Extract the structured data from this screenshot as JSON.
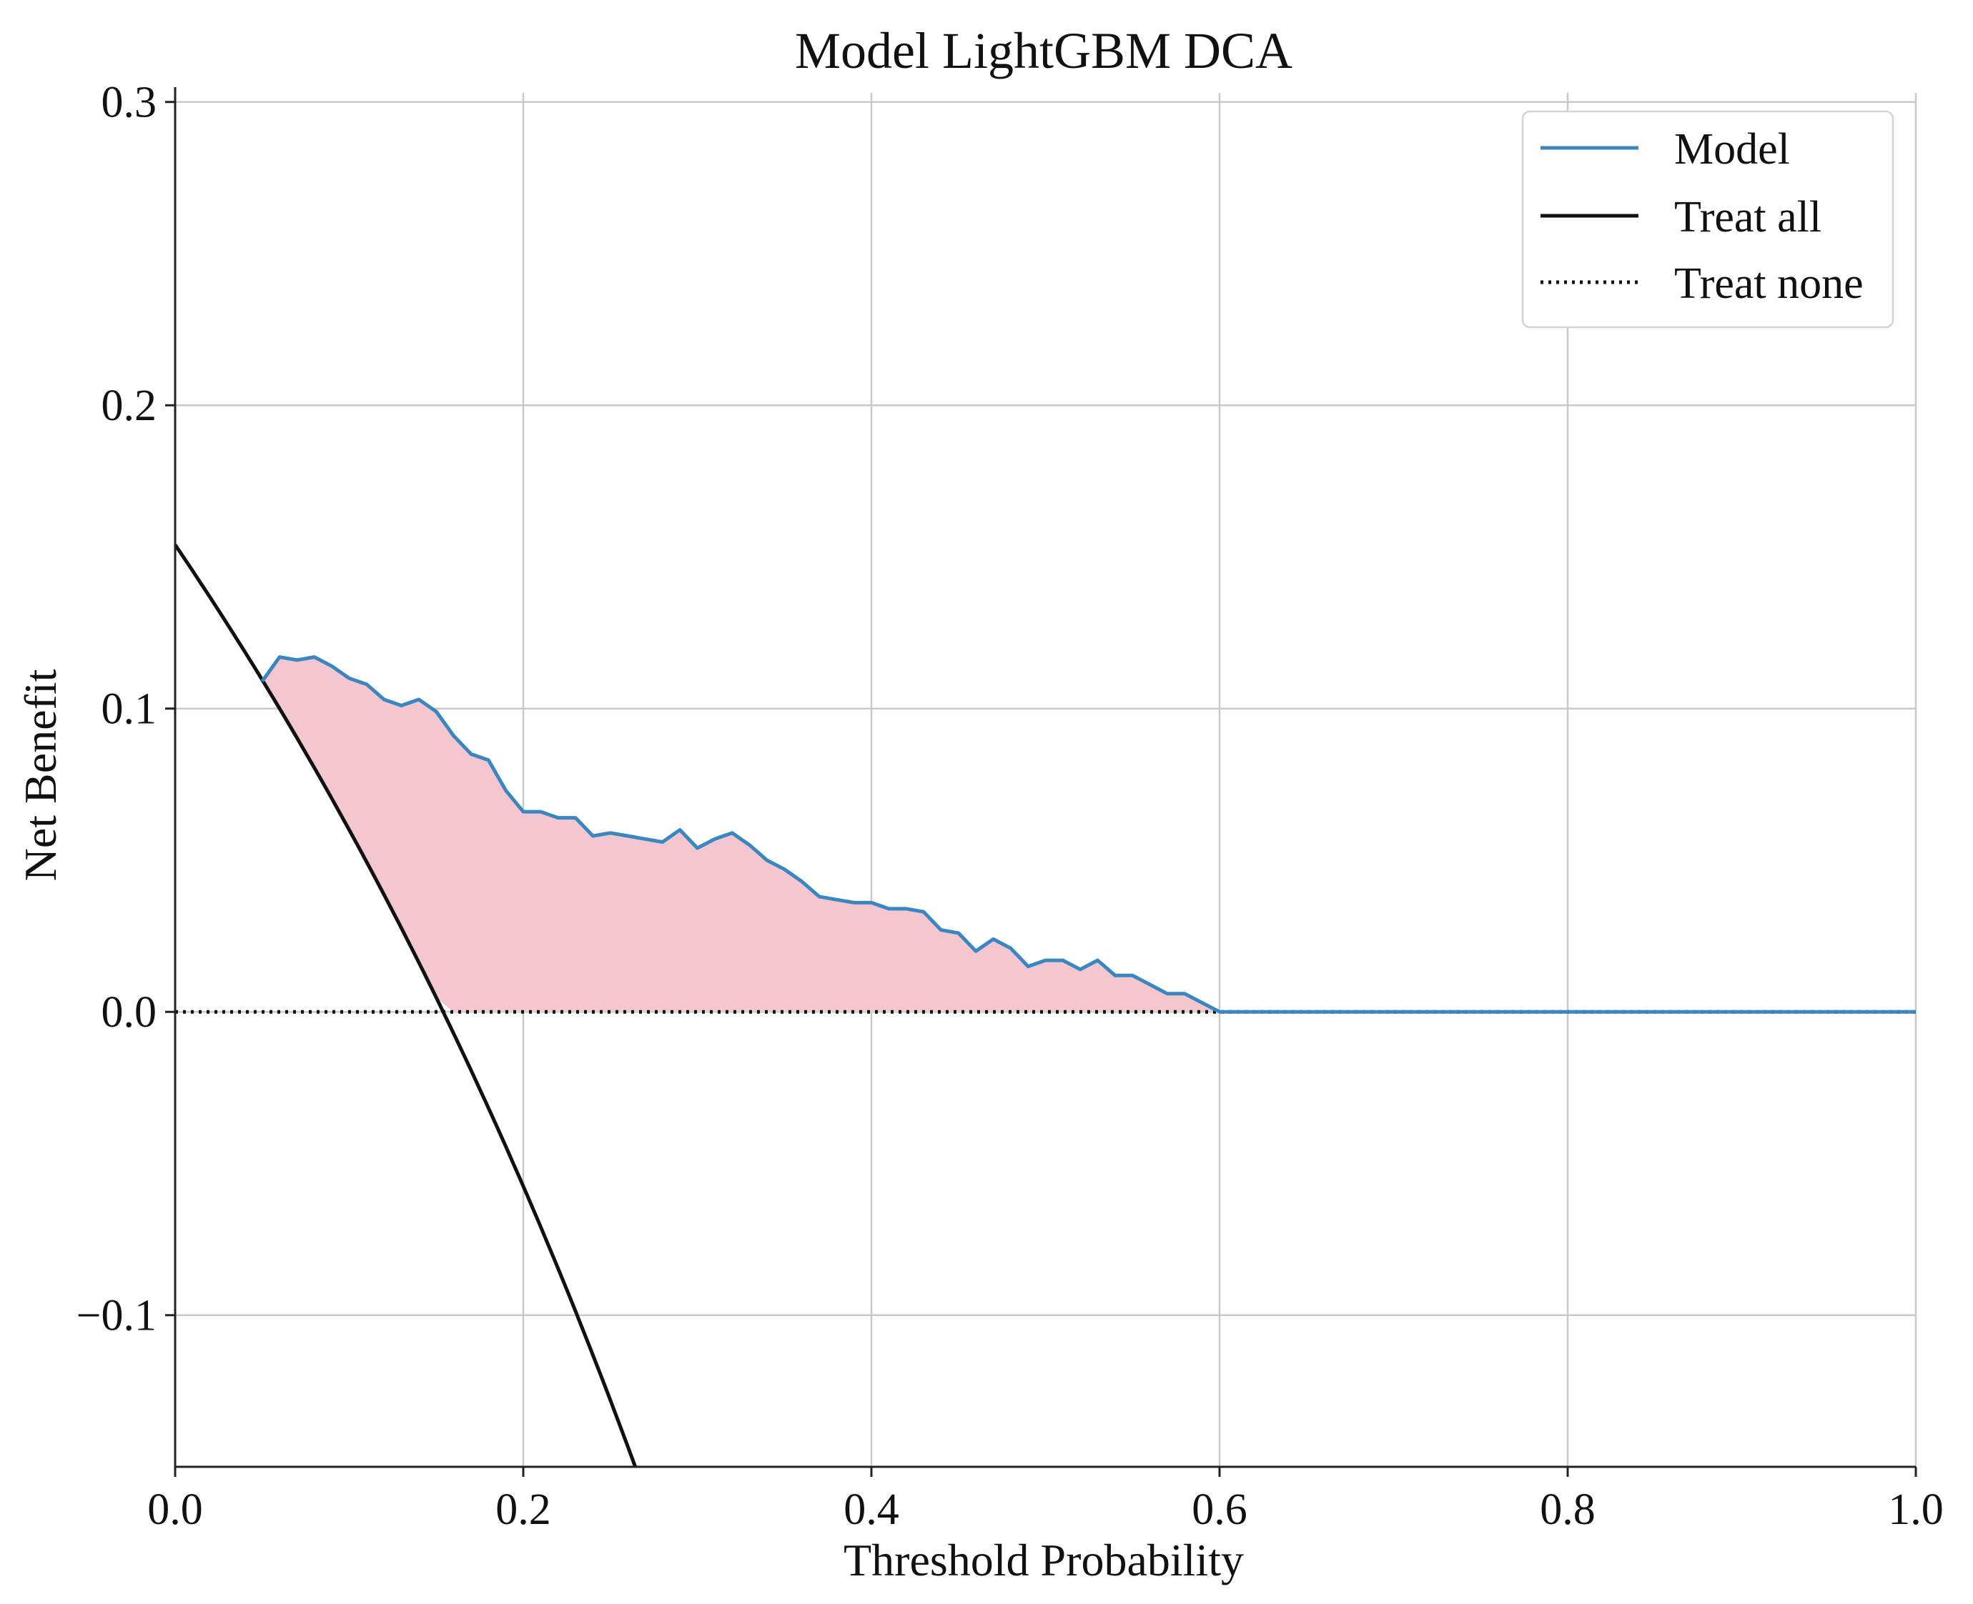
{
  "chart_data": {
    "type": "line",
    "title": "Model LightGBM DCA",
    "xlabel": "Threshold Probability",
    "ylabel": "Net Benefit",
    "xlim": [
      0.0,
      1.0
    ],
    "ylim": [
      -0.15,
      0.303
    ],
    "grid": true,
    "legend_position": "top-right",
    "x_ticks": [
      0.0,
      0.2,
      0.4,
      0.6,
      0.8,
      1.0
    ],
    "x_tick_labels": [
      "0.0",
      "0.2",
      "0.4",
      "0.6",
      "0.8",
      "1.0"
    ],
    "y_ticks": [
      -0.1,
      0.0,
      0.1,
      0.2,
      0.3
    ],
    "y_tick_labels": [
      "−0.1",
      "0.0",
      "0.1",
      "0.2",
      "0.3"
    ],
    "prevalence": 0.154,
    "fill_region": {
      "description": "Shaded area between Model and max(Treat all, Treat none)",
      "color": "#f4c6d0"
    },
    "series": [
      {
        "name": "Model",
        "label": "Model",
        "color": "#3a86c0",
        "style": "solid",
        "x": [
          0.05,
          0.06,
          0.07,
          0.08,
          0.09,
          0.1,
          0.11,
          0.12,
          0.13,
          0.14,
          0.15,
          0.16,
          0.17,
          0.18,
          0.19,
          0.2,
          0.21,
          0.22,
          0.23,
          0.24,
          0.25,
          0.26,
          0.27,
          0.28,
          0.29,
          0.3,
          0.31,
          0.32,
          0.33,
          0.34,
          0.35,
          0.36,
          0.37,
          0.38,
          0.39,
          0.4,
          0.41,
          0.42,
          0.43,
          0.44,
          0.45,
          0.46,
          0.47,
          0.48,
          0.49,
          0.5,
          0.51,
          0.52,
          0.53,
          0.54,
          0.55,
          0.56,
          0.57,
          0.58,
          0.59,
          0.6,
          0.7,
          0.8,
          0.9,
          1.0
        ],
        "y": [
          0.109,
          0.117,
          0.116,
          0.117,
          0.114,
          0.11,
          0.108,
          0.103,
          0.101,
          0.103,
          0.099,
          0.091,
          0.085,
          0.083,
          0.073,
          0.066,
          0.066,
          0.064,
          0.064,
          0.058,
          0.059,
          0.058,
          0.057,
          0.056,
          0.06,
          0.054,
          0.057,
          0.059,
          0.055,
          0.05,
          0.047,
          0.043,
          0.038,
          0.037,
          0.036,
          0.036,
          0.034,
          0.034,
          0.033,
          0.027,
          0.026,
          0.02,
          0.024,
          0.021,
          0.015,
          0.017,
          0.017,
          0.014,
          0.017,
          0.012,
          0.012,
          0.009,
          0.006,
          0.006,
          0.003,
          0.0,
          0.0,
          0.0,
          0.0,
          0.0
        ]
      },
      {
        "name": "Treat all",
        "label": "Treat all",
        "color": "#111111",
        "style": "solid",
        "formula": "prevalence - (1 - prevalence) * t / (1 - t)"
      },
      {
        "name": "Treat none",
        "label": "Treat none",
        "color": "#111111",
        "style": "dotted",
        "y_constant": 0.0
      }
    ]
  }
}
